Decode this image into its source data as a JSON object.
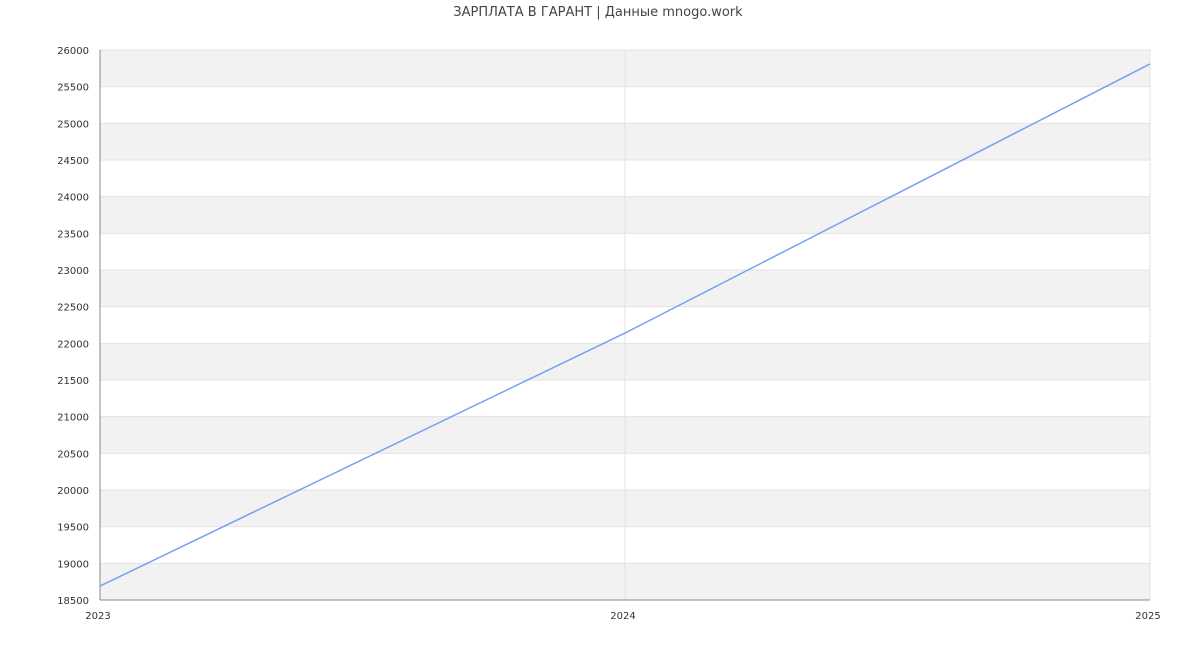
{
  "chart_data": {
    "type": "line",
    "title": "ЗАРПЛАТА В ГАРАНТ | Данные mnogo.work",
    "xlabel": "",
    "ylabel": "",
    "x": [
      2023,
      2024,
      2025
    ],
    "x_tick_labels": [
      "2023",
      "2024",
      "2025"
    ],
    "series": [
      {
        "values": [
          18690,
          22140,
          25810
        ],
        "color": "#779ff5"
      }
    ],
    "ylim": [
      18500,
      26000
    ],
    "xlim": [
      2023,
      2025
    ],
    "y_ticks": [
      18500,
      19000,
      19500,
      20000,
      20500,
      21000,
      21500,
      22000,
      22500,
      23000,
      23500,
      24000,
      24500,
      25000,
      25500,
      26000
    ],
    "grid": true,
    "band_color": "#f2f2f2",
    "legend": "none"
  }
}
